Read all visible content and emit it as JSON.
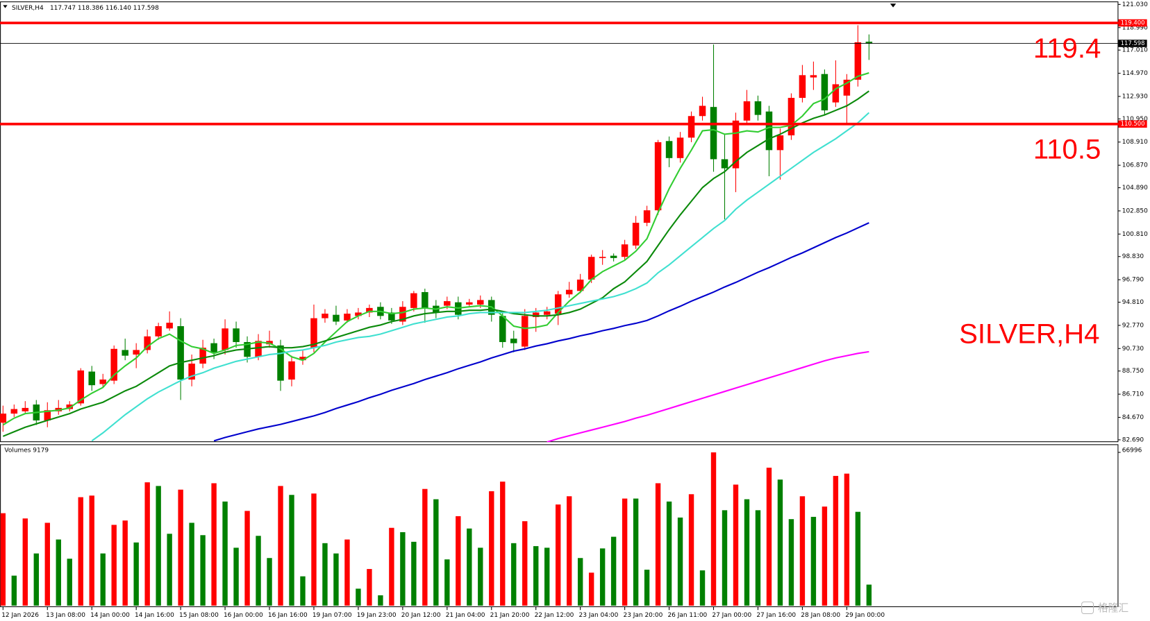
{
  "chart_data": {
    "type": "candlestick",
    "title": "SILVER,H4",
    "ohlc_text": "117.747 118.386 116.140 117.598",
    "categories": [
      "12 Jan 2026",
      null,
      null,
      null,
      "13 Jan 08:00",
      null,
      null,
      null,
      "14 Jan 00:00",
      null,
      null,
      null,
      "14 Jan 16:00",
      null,
      null,
      null,
      "15 Jan 08:00",
      null,
      null,
      null,
      "16 Jan 00:00",
      null,
      null,
      null,
      "16 Jan 16:00",
      null,
      null,
      null,
      "19 Jan 07:00",
      null,
      null,
      null,
      "19 Jan 23:00",
      null,
      null,
      null,
      "20 Jan 12:00",
      null,
      null,
      null,
      "21 Jan 04:00",
      null,
      null,
      null,
      "21 Jan 20:00",
      null,
      null,
      null,
      "22 Jan 12:00",
      null,
      null,
      null,
      "23 Jan 04:00",
      null,
      null,
      null,
      "23 Jan 20:00",
      null,
      null,
      null,
      "26 Jan 11:00",
      null,
      null,
      null,
      "27 Jan 00:00",
      null,
      null,
      null,
      "27 Jan 16:00",
      null,
      null,
      null,
      "28 Jan 08:00",
      null,
      null,
      null,
      "29 Jan 00:00",
      null,
      null
    ],
    "open": [
      84.2,
      85.0,
      85.2,
      85.8,
      84.4,
      85.2,
      85.4,
      85.9,
      88.7,
      87.6,
      87.9,
      90.6,
      90.2,
      90.6,
      91.8,
      92.5,
      92.7,
      88.0,
      89.4,
      91.2,
      90.6,
      92.5,
      91.3,
      90.0,
      91.1,
      91.0,
      88.0,
      89.7,
      90.8,
      93.4,
      93.7,
      93.2,
      93.6,
      93.9,
      94.4,
      93.9,
      93.1,
      94.3,
      95.7,
      94.5,
      94.5,
      94.8,
      94.6,
      94.6,
      95.0,
      93.6,
      91.6,
      90.9,
      93.5,
      93.7,
      93.8,
      95.5,
      95.8,
      96.8,
      98.7,
      98.9,
      98.8,
      99.8,
      101.8,
      102.9,
      109.0,
      107.5,
      109.3,
      111.2,
      112.0,
      107.4,
      106.6,
      110.8,
      112.5,
      111.6,
      108.2,
      109.5,
      112.8,
      114.6,
      114.9,
      112.4,
      113.0,
      114.4,
      117.747
    ],
    "high": [
      85.7,
      85.8,
      86.1,
      86.2,
      86.0,
      86.2,
      86.1,
      89.0,
      89.2,
      88.5,
      91.0,
      91.6,
      91.2,
      92.4,
      93.0,
      94.0,
      93.4,
      90.2,
      91.5,
      91.6,
      93.3,
      93.1,
      91.8,
      92.0,
      92.3,
      91.5,
      90.1,
      90.6,
      94.6,
      94.2,
      94.5,
      94.2,
      94.3,
      94.6,
      94.8,
      94.3,
      94.9,
      95.8,
      96.0,
      95.0,
      95.3,
      95.3,
      95.1,
      95.4,
      95.3,
      94.0,
      92.3,
      94.2,
      94.3,
      94.4,
      95.8,
      96.6,
      97.3,
      99.0,
      99.4,
      99.1,
      100.3,
      102.4,
      103.3,
      109.1,
      109.4,
      109.8,
      111.6,
      112.9,
      117.5,
      109.6,
      111.5,
      113.5,
      113.0,
      112.1,
      110.1,
      113.2,
      115.7,
      116.0,
      115.3,
      116.1,
      114.9,
      119.2,
      118.386
    ],
    "low": [
      83.4,
      84.7,
      85.0,
      84.0,
      83.8,
      84.9,
      85.2,
      85.7,
      87.0,
      87.3,
      87.6,
      89.7,
      89.0,
      90.3,
      91.5,
      92.3,
      86.2,
      87.4,
      89.0,
      89.8,
      90.2,
      90.8,
      89.5,
      89.7,
      90.8,
      87.0,
      87.4,
      89.3,
      90.4,
      93.0,
      92.8,
      93.0,
      93.3,
      93.5,
      93.3,
      92.9,
      92.8,
      94.0,
      93.0,
      93.4,
      94.2,
      93.3,
      94.4,
      94.3,
      93.1,
      90.8,
      90.4,
      90.6,
      92.2,
      93.3,
      92.8,
      95.2,
      95.6,
      96.5,
      98.1,
      98.4,
      98.5,
      99.5,
      101.5,
      102.5,
      106.7,
      107.1,
      108.9,
      110.8,
      106.3,
      102.1,
      104.5,
      110.5,
      110.8,
      105.9,
      105.6,
      109.1,
      112.4,
      113.5,
      111.3,
      112.0,
      110.5,
      113.8,
      116.14
    ],
    "close": [
      85.0,
      85.4,
      85.5,
      84.4,
      85.3,
      85.5,
      85.8,
      88.8,
      87.5,
      88.0,
      90.7,
      90.1,
      90.6,
      91.8,
      92.7,
      93.0,
      88.0,
      89.4,
      90.8,
      90.4,
      92.5,
      91.3,
      90.0,
      91.4,
      91.4,
      87.9,
      89.6,
      90.0,
      93.4,
      93.8,
      93.1,
      93.8,
      93.9,
      94.3,
      93.6,
      93.2,
      94.4,
      95.6,
      94.3,
      93.9,
      94.9,
      93.7,
      94.8,
      95.0,
      93.7,
      91.3,
      91.2,
      93.6,
      93.9,
      94.0,
      95.5,
      95.9,
      96.8,
      98.8,
      98.8,
      98.7,
      99.9,
      101.8,
      102.9,
      108.9,
      107.5,
      109.3,
      111.2,
      112.1,
      107.4,
      106.6,
      110.8,
      112.5,
      111.3,
      108.2,
      109.5,
      112.8,
      114.8,
      114.8,
      111.7,
      114.0,
      114.4,
      117.7,
      117.598
    ],
    "up_color": "#ff0000",
    "down_color": "#008000",
    "ylim": [
      82.49,
      121.29
    ],
    "yticks": [
      {
        "value": 121.03,
        "label": "121.030"
      },
      {
        "value": 118.99,
        "label": "118.990"
      },
      {
        "value": 117.01,
        "label": "117.010"
      },
      {
        "value": 114.97,
        "label": "114.970"
      },
      {
        "value": 112.93,
        "label": "112.930"
      },
      {
        "value": 110.95,
        "label": "110.950"
      },
      {
        "value": 108.91,
        "label": "108.910"
      },
      {
        "value": 106.87,
        "label": "106.870"
      },
      {
        "value": 104.89,
        "label": "104.890"
      },
      {
        "value": 102.85,
        "label": "102.850"
      },
      {
        "value": 100.81,
        "label": "100.810"
      },
      {
        "value": 98.83,
        "label": "98.830"
      },
      {
        "value": 96.79,
        "label": "96.790"
      },
      {
        "value": 94.81,
        "label": "94.810"
      },
      {
        "value": 92.77,
        "label": "92.770"
      },
      {
        "value": 90.73,
        "label": "90.730"
      },
      {
        "value": 88.75,
        "label": "88.750"
      },
      {
        "value": 86.71,
        "label": "86.710"
      },
      {
        "value": 84.67,
        "label": "84.670"
      },
      {
        "value": 82.69,
        "label": "82.690"
      }
    ],
    "overlays": [
      {
        "color": "#32cd32",
        "values": [
          84.0,
          84.6,
          85.0,
          85.1,
          85.2,
          85.3,
          85.5,
          86.2,
          86.8,
          87.3,
          88.4,
          89.2,
          89.9,
          90.9,
          91.6,
          92.0,
          91.4,
          90.9,
          90.7,
          90.3,
          90.6,
          91.0,
          91.1,
          91.3,
          91.2,
          90.7,
          90.0,
          89.7,
          90.3,
          91.3,
          92.2,
          93.1,
          93.6,
          94.0,
          94.0,
          93.8,
          93.9,
          94.2,
          94.3,
          94.2,
          94.4,
          94.3,
          94.4,
          94.5,
          94.4,
          93.6,
          92.7,
          92.5,
          92.6,
          92.8,
          93.9,
          94.9,
          95.7,
          96.8,
          97.5,
          98.0,
          98.5,
          99.3,
          100.4,
          102.7,
          104.8,
          106.6,
          108.2,
          109.9,
          110.0,
          109.6,
          109.7,
          109.9,
          109.8,
          110.2,
          110.2,
          110.4,
          111.2,
          112.3,
          112.7,
          113.6,
          114.1,
          114.7,
          115.0
        ]
      },
      {
        "color": "#0b8a0b",
        "values": [
          83.0,
          83.4,
          83.8,
          84.1,
          84.4,
          84.7,
          85.0,
          85.4,
          85.7,
          86.0,
          86.5,
          87.0,
          87.4,
          88.0,
          88.6,
          89.2,
          89.5,
          89.7,
          89.9,
          90.1,
          90.4,
          90.6,
          90.7,
          90.8,
          90.9,
          90.8,
          90.8,
          90.9,
          91.1,
          91.4,
          91.7,
          92.0,
          92.3,
          92.6,
          92.8,
          93.1,
          93.3,
          93.6,
          93.8,
          93.9,
          94.0,
          94.0,
          94.1,
          94.1,
          94.2,
          94.0,
          93.8,
          93.7,
          93.6,
          93.6,
          93.7,
          93.9,
          94.2,
          94.7,
          95.2,
          96.0,
          96.6,
          97.5,
          98.4,
          99.8,
          101.2,
          102.5,
          103.7,
          104.9,
          105.7,
          106.3,
          107.2,
          108.0,
          108.6,
          109.2,
          109.6,
          110.1,
          110.6,
          111.0,
          111.3,
          111.7,
          112.1,
          112.7,
          113.4
        ]
      },
      {
        "color": "#40e0d0",
        "values": [
          null,
          null,
          null,
          null,
          null,
          null,
          null,
          null,
          82.6,
          83.3,
          84.1,
          84.9,
          85.6,
          86.3,
          86.9,
          87.4,
          87.9,
          88.3,
          88.6,
          89.0,
          89.3,
          89.6,
          89.8,
          90.0,
          90.2,
          90.3,
          90.5,
          90.6,
          90.8,
          91.0,
          91.3,
          91.5,
          91.7,
          91.8,
          92.0,
          92.3,
          92.6,
          92.9,
          93.1,
          93.3,
          93.5,
          93.6,
          93.8,
          93.9,
          93.9,
          93.9,
          93.9,
          93.9,
          94.0,
          94.1,
          94.3,
          94.5,
          94.7,
          94.9,
          95.1,
          95.3,
          95.6,
          96.0,
          96.5,
          97.4,
          98.1,
          98.9,
          99.7,
          100.5,
          101.3,
          102.0,
          103.0,
          103.8,
          104.5,
          105.2,
          105.9,
          106.6,
          107.3,
          108.0,
          108.6,
          109.2,
          109.9,
          110.6,
          111.5
        ]
      },
      {
        "color": "#0000cd",
        "values": [
          null,
          null,
          null,
          null,
          null,
          null,
          null,
          null,
          null,
          null,
          null,
          null,
          null,
          null,
          null,
          null,
          null,
          null,
          null,
          82.6,
          82.9,
          83.15,
          83.4,
          83.65,
          83.85,
          84.05,
          84.3,
          84.55,
          84.8,
          85.1,
          85.45,
          85.75,
          86.05,
          86.4,
          86.7,
          87.05,
          87.35,
          87.65,
          88.0,
          88.3,
          88.6,
          88.95,
          89.25,
          89.55,
          89.9,
          90.2,
          90.5,
          90.7,
          90.95,
          91.15,
          91.4,
          91.6,
          91.85,
          92.05,
          92.3,
          92.5,
          92.75,
          92.95,
          93.2,
          93.6,
          94.05,
          94.45,
          94.9,
          95.3,
          95.7,
          96.15,
          96.55,
          97.0,
          97.45,
          97.85,
          98.3,
          98.75,
          99.15,
          99.6,
          100.05,
          100.5,
          100.9,
          101.35,
          101.8
        ]
      },
      {
        "color": "#ff00ff",
        "values": [
          null,
          null,
          null,
          null,
          null,
          null,
          null,
          null,
          null,
          null,
          null,
          null,
          null,
          null,
          null,
          null,
          null,
          null,
          null,
          null,
          null,
          null,
          null,
          null,
          null,
          null,
          null,
          null,
          null,
          null,
          null,
          null,
          null,
          null,
          null,
          null,
          null,
          null,
          null,
          null,
          null,
          null,
          null,
          null,
          null,
          null,
          null,
          null,
          null,
          82.5,
          82.8,
          83.05,
          83.3,
          83.55,
          83.8,
          84.05,
          84.3,
          84.6,
          84.85,
          85.15,
          85.45,
          85.75,
          86.05,
          86.35,
          86.65,
          86.95,
          87.25,
          87.55,
          87.85,
          88.15,
          88.45,
          88.75,
          89.05,
          89.35,
          89.65,
          89.9,
          90.1,
          90.3,
          90.45
        ]
      }
    ],
    "levels": [
      {
        "value": 119.4,
        "label": "119.400",
        "color": "#ff0000"
      },
      {
        "value": 110.5,
        "label": "110.500",
        "color": "#ff0000"
      }
    ],
    "bid": {
      "value": 117.598,
      "label": "117.598",
      "color": "#000000"
    },
    "volume": {
      "label": "Volumes 9179",
      "values": [
        40400,
        13100,
        38100,
        22800,
        36200,
        28900,
        20500,
        47400,
        48100,
        22800,
        35300,
        37200,
        27600,
        53900,
        52300,
        31400,
        50700,
        36200,
        30800,
        53500,
        45500,
        25300,
        41400,
        30500,
        20800,
        52300,
        48400,
        12800,
        49000,
        27300,
        22800,
        28900,
        7400,
        16000,
        4500,
        34000,
        32100,
        27900,
        51000,
        46500,
        20200,
        39100,
        33700,
        25300,
        50000,
        54200,
        27300,
        36900,
        26000,
        25300,
        44200,
        47800,
        20800,
        14400,
        25000,
        30100,
        46800,
        46800,
        15700,
        53500,
        45500,
        38500,
        48700,
        15400,
        66996,
        41700,
        52900,
        46500,
        41700,
        60300,
        55100,
        37800,
        47800,
        38800,
        43300,
        56700,
        57700,
        41000,
        9179
      ],
      "colors": [
        "red",
        "green",
        "red",
        "green",
        "red",
        "green",
        "green",
        "red",
        "red",
        "green",
        "red",
        "red",
        "green",
        "red",
        "green",
        "green",
        "red",
        "green",
        "green",
        "red",
        "green",
        "green",
        "red",
        "green",
        "green",
        "red",
        "green",
        "green",
        "red",
        "green",
        "green",
        "red",
        "green",
        "red",
        "green",
        "red",
        "green",
        "green",
        "red",
        "green",
        "green",
        "red",
        "green",
        "green",
        "red",
        "red",
        "green",
        "red",
        "green",
        "green",
        "red",
        "red",
        "green",
        "red",
        "green",
        "green",
        "red",
        "green",
        "green",
        "red",
        "green",
        "green",
        "red",
        "green",
        "red",
        "green",
        "red",
        "green",
        "green",
        "red",
        "green",
        "green",
        "red",
        "green",
        "red",
        "red",
        "red",
        "green",
        "green"
      ],
      "ylim": [
        0,
        66996
      ],
      "yticks": [
        66996
      ]
    },
    "watermark": "格隆汇"
  }
}
